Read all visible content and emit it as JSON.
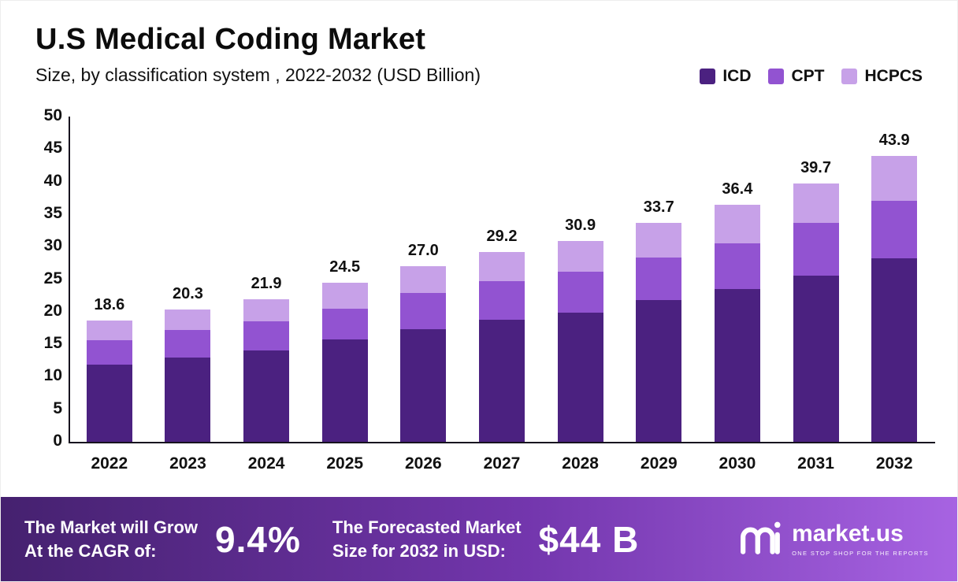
{
  "header": {
    "title": "U.S Medical Coding Market",
    "subtitle": "Size, by classification system , 2022-2032 (USD Billion)"
  },
  "chart_data": {
    "type": "bar",
    "stacked": true,
    "title": "U.S Medical Coding Market",
    "subtitle": "Size, by classification system , 2022-2032 (USD Billion)",
    "categories": [
      "2022",
      "2023",
      "2024",
      "2025",
      "2026",
      "2027",
      "2028",
      "2029",
      "2030",
      "2031",
      "2032"
    ],
    "series": [
      {
        "name": "ICD",
        "color": "#4b2180",
        "values": [
          11.9,
          13.0,
          14.1,
          15.8,
          17.3,
          18.8,
          19.9,
          21.8,
          23.5,
          25.6,
          28.2
        ]
      },
      {
        "name": "CPT",
        "color": "#9253d1",
        "values": [
          3.7,
          4.2,
          4.4,
          4.7,
          5.6,
          5.9,
          6.2,
          6.5,
          7.0,
          8.0,
          8.9
        ]
      },
      {
        "name": "HCPCS",
        "color": "#c7a1e8",
        "values": [
          3.0,
          3.1,
          3.4,
          4.0,
          4.1,
          4.5,
          4.8,
          5.4,
          5.9,
          6.1,
          6.8
        ]
      }
    ],
    "totals": [
      18.6,
      20.3,
      21.9,
      24.5,
      27.0,
      29.2,
      30.9,
      33.7,
      36.4,
      39.7,
      43.9
    ],
    "ylim": [
      0,
      50
    ],
    "yticks": [
      0,
      5,
      10,
      15,
      20,
      25,
      30,
      35,
      40,
      45,
      50
    ],
    "legend_position": "top-right",
    "grid": false
  },
  "footer": {
    "cagr_label_line1": "The Market will Grow",
    "cagr_label_line2": "At the CAGR of:",
    "cagr_value": "9.4%",
    "forecast_label_line1": "The Forecasted Market",
    "forecast_label_line2": "Size for 2032 in USD:",
    "forecast_value": "$44 B",
    "brand": "market.us",
    "brand_tagline": "ONE STOP SHOP FOR THE REPORTS"
  }
}
